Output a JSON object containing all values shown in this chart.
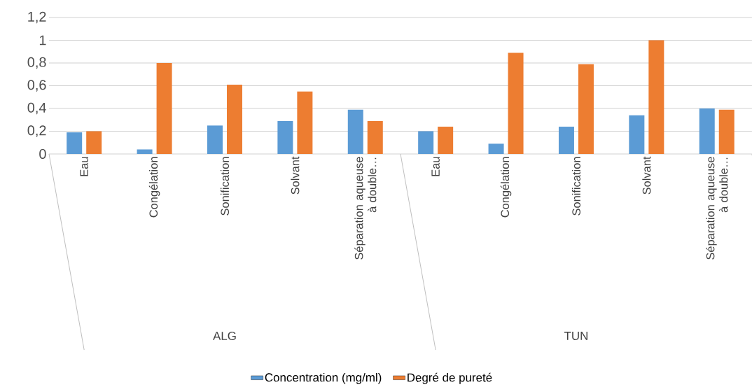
{
  "chart_data": {
    "type": "bar",
    "categories": [
      "Eau",
      "Congélation",
      "Sonification",
      "Solvant",
      "Séparation aqueuse à double…",
      "Eau",
      "Congélation",
      "Sonification",
      "Solvant",
      "Séparation aqueuse à double…"
    ],
    "series": [
      {
        "name": "Concentration (mg/ml)",
        "color": "#5b9bd5",
        "values": [
          0.19,
          0.04,
          0.25,
          0.29,
          0.39,
          0.2,
          0.09,
          0.24,
          0.34,
          0.4
        ]
      },
      {
        "name": "Degré de pureté",
        "color": "#ed7d31",
        "values": [
          0.2,
          0.8,
          0.61,
          0.55,
          0.29,
          0.24,
          0.89,
          0.79,
          1.0,
          0.39
        ]
      }
    ],
    "ylim": [
      0,
      1.2
    ],
    "yticks": [
      0,
      {
        "value": 0.2,
        "label": "0,2"
      },
      {
        "value": 0.4,
        "label": "0,4"
      },
      {
        "value": 0.6,
        "label": "0,6"
      },
      {
        "value": 0.8,
        "label": "0,8"
      },
      1,
      {
        "value": 1.2,
        "label": "1,2"
      }
    ],
    "grid": "y",
    "legend": "bottom",
    "annotations": [
      "ALG",
      "TUN"
    ]
  }
}
